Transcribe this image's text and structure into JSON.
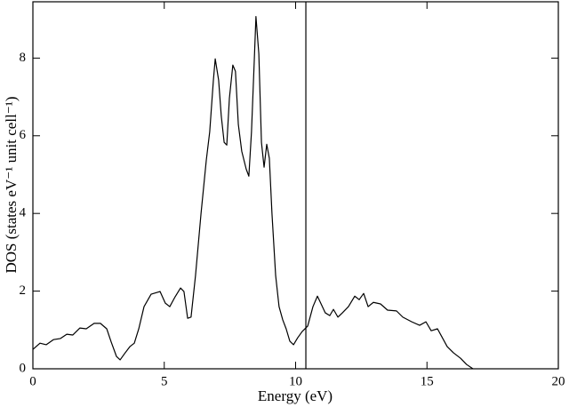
{
  "chart_data": {
    "type": "line",
    "xlabel": "Energy (eV)",
    "ylabel": "DOS (states eV⁻¹ unit cell⁻¹)",
    "x": [
      0,
      0.27,
      0.51,
      0.78,
      1.05,
      1.29,
      1.52,
      1.79,
      2.03,
      2.33,
      2.57,
      2.81,
      2.98,
      3.18,
      3.32,
      3.49,
      3.69,
      3.86,
      4.03,
      4.23,
      4.5,
      4.84,
      5.04,
      5.21,
      5.41,
      5.62,
      5.75,
      5.89,
      6.02,
      6.19,
      6.4,
      6.6,
      6.73,
      6.87,
      6.94,
      7.07,
      7.17,
      7.28,
      7.38,
      7.48,
      7.61,
      7.71,
      7.82,
      7.95,
      8.12,
      8.22,
      8.32,
      8.43,
      8.49,
      8.6,
      8.7,
      8.8,
      8.9,
      9.0,
      9.1,
      9.24,
      9.37,
      9.51,
      9.64,
      9.78,
      9.92,
      10.08,
      10.25,
      10.46,
      10.66,
      10.83,
      10.97,
      11.13,
      11.3,
      11.44,
      11.61,
      11.78,
      12.01,
      12.25,
      12.42,
      12.59,
      12.76,
      12.96,
      13.23,
      13.5,
      13.84,
      14.08,
      14.42,
      14.72,
      14.96,
      15.16,
      15.4,
      15.57,
      15.77,
      16.01,
      16.28,
      16.51,
      16.75
    ],
    "values": [
      0.5,
      0.66,
      0.62,
      0.75,
      0.78,
      0.89,
      0.87,
      1.05,
      1.03,
      1.17,
      1.17,
      1.03,
      0.69,
      0.32,
      0.23,
      0.39,
      0.57,
      0.66,
      1.03,
      1.6,
      1.92,
      1.99,
      1.69,
      1.6,
      1.85,
      2.08,
      1.99,
      1.3,
      1.33,
      2.4,
      4.0,
      5.37,
      6.1,
      7.43,
      7.98,
      7.43,
      6.51,
      5.83,
      5.76,
      6.97,
      7.82,
      7.66,
      6.29,
      5.6,
      5.14,
      4.96,
      6.1,
      8.0,
      9.07,
      8.11,
      5.83,
      5.19,
      5.78,
      5.42,
      4.0,
      2.4,
      1.6,
      1.26,
      1.03,
      0.71,
      0.62,
      0.8,
      0.96,
      1.1,
      1.6,
      1.87,
      1.67,
      1.44,
      1.37,
      1.53,
      1.33,
      1.44,
      1.6,
      1.87,
      1.78,
      1.94,
      1.6,
      1.71,
      1.67,
      1.51,
      1.49,
      1.33,
      1.21,
      1.12,
      1.21,
      0.98,
      1.03,
      0.82,
      0.57,
      0.41,
      0.27,
      0.11,
      0
    ],
    "color": "#000000",
    "vline_x": 10.39,
    "xlim": [
      0,
      20
    ],
    "xticks": [
      0,
      5,
      10,
      15,
      20
    ],
    "ylim": [
      0,
      9.45
    ],
    "yticks": [
      0,
      2,
      4,
      6,
      8
    ],
    "grid": false
  }
}
